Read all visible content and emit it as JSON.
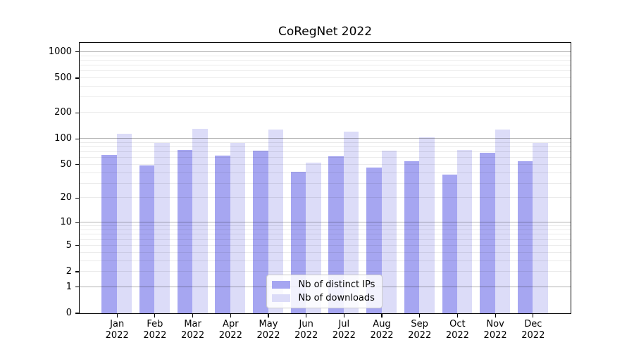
{
  "title": "CoRegNet 2022",
  "chart_data": {
    "type": "bar",
    "title": "CoRegNet 2022",
    "xlabel": "",
    "ylabel": "",
    "x_tick_labels": [
      "Jan 2022",
      "Feb 2022",
      "Mar 2022",
      "Apr 2022",
      "May 2022",
      "Jun 2022",
      "Jul 2022",
      "Aug 2022",
      "Sep 2022",
      "Oct 2022",
      "Nov 2022",
      "Dec 2022"
    ],
    "categories": [
      "Jan 2022",
      "Feb 2022",
      "Mar 2022",
      "Apr 2022",
      "May 2022",
      "Jun 2022",
      "Jul 2022",
      "Aug 2022",
      "Sep 2022",
      "Oct 2022",
      "Nov 2022",
      "Dec 2022"
    ],
    "series": [
      {
        "name": "Nb of distinct IPs",
        "color": "#a6a6f1",
        "values": [
          64,
          48,
          74,
          63,
          72,
          41,
          62,
          46,
          54,
          38,
          68,
          54
        ]
      },
      {
        "name": "Nb of downloads",
        "color": "#dcdcf8",
        "values": [
          114,
          89,
          128,
          88,
          126,
          52,
          120,
          72,
          104,
          74,
          126,
          89
        ]
      }
    ],
    "y_scale": "log1p",
    "y_ticks": [
      0,
      1,
      2,
      5,
      10,
      20,
      50,
      100,
      200,
      500,
      1000
    ],
    "ylim": [
      0,
      1270
    ],
    "grid": {
      "horizontal_only": true,
      "major_color": "rgba(0,0,0,0.30)",
      "minor_color": "rgba(0,0,0,0.08)",
      "major_at": [
        1,
        10,
        100,
        1000
      ]
    },
    "legend_position": "lower center"
  }
}
